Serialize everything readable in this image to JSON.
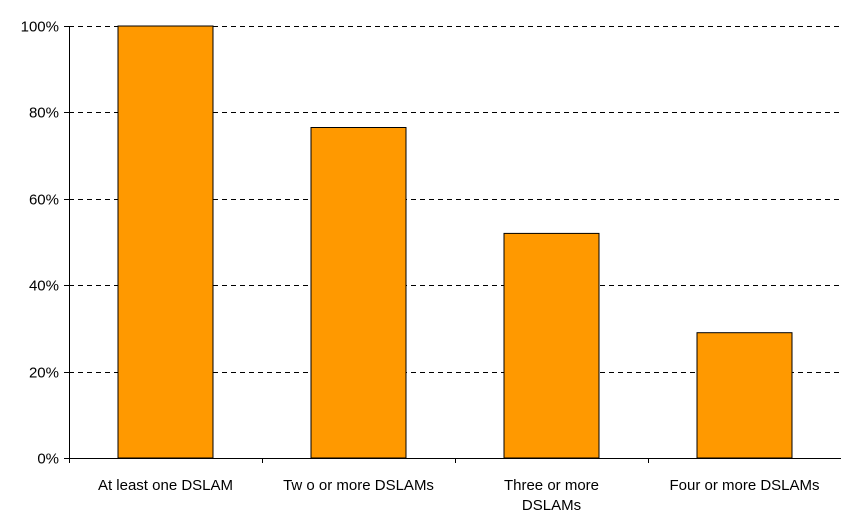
{
  "chart_data": {
    "type": "bar",
    "title": "",
    "xlabel": "",
    "ylabel": "",
    "categories": [
      [
        "At least one DSLAM"
      ],
      [
        "Tw o or more DSLAMs"
      ],
      [
        "Three or more",
        "DSLAMs"
      ],
      [
        "Four or more DSLAMs"
      ]
    ],
    "values": [
      100,
      76.5,
      52,
      29
    ],
    "ylim": [
      0,
      100
    ],
    "yticks": [
      0,
      20,
      40,
      60,
      80,
      100
    ],
    "ytick_labels": [
      "0%",
      "20%",
      "40%",
      "60%",
      "80%",
      "100%"
    ],
    "grid": "horizontal dashed",
    "legend": "none",
    "colors": {
      "bar_fill": "#ff9900",
      "bar_stroke": "#000000",
      "axis": "#000000",
      "grid": "#000000",
      "background": "#ffffff"
    }
  }
}
